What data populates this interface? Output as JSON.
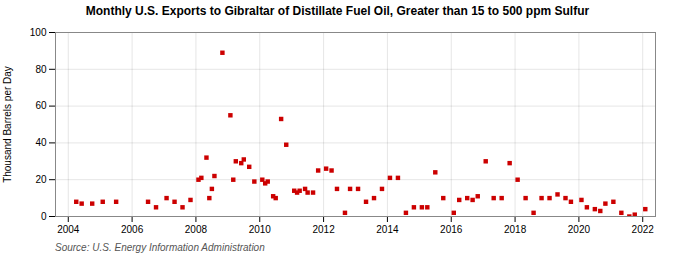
{
  "chart_data": {
    "type": "scatter",
    "title": "Monthly U.S. Exports to Gibraltar of Distillate Fuel Oil, Greater than 15 to 500 ppm Sulfur",
    "ylabel": "Thousand Barrels per Day",
    "source": "Source: U.S. Energy Information Administration",
    "color": "#cc0000",
    "marker": "square",
    "grid": true,
    "xlim": [
      2003.6,
      2022.4
    ],
    "ylim": [
      0,
      100
    ],
    "xticks": [
      2004,
      2006,
      2008,
      2010,
      2012,
      2014,
      2016,
      2018,
      2020,
      2022
    ],
    "yticks": [
      0,
      20,
      40,
      60,
      80,
      100
    ],
    "x": [
      2004.25,
      2004.42,
      2004.75,
      2005.08,
      2005.5,
      2006.5,
      2006.75,
      2007.08,
      2007.33,
      2007.58,
      2007.83,
      2008.08,
      2008.17,
      2008.33,
      2008.42,
      2008.5,
      2008.58,
      2008.83,
      2009.08,
      2009.17,
      2009.25,
      2009.42,
      2009.5,
      2009.67,
      2009.83,
      2010.08,
      2010.17,
      2010.25,
      2010.42,
      2010.5,
      2010.67,
      2010.83,
      2011.08,
      2011.17,
      2011.25,
      2011.42,
      2011.5,
      2011.67,
      2011.83,
      2012.08,
      2012.25,
      2012.42,
      2012.67,
      2012.83,
      2013.08,
      2013.33,
      2013.58,
      2013.83,
      2014.08,
      2014.33,
      2014.58,
      2014.83,
      2015.08,
      2015.25,
      2015.5,
      2015.75,
      2016.08,
      2016.25,
      2016.5,
      2016.67,
      2016.83,
      2017.08,
      2017.33,
      2017.58,
      2017.83,
      2018.08,
      2018.33,
      2018.58,
      2018.83,
      2019.08,
      2019.33,
      2019.58,
      2019.75,
      2020.08,
      2020.25,
      2020.5,
      2020.67,
      2020.83,
      2021.08,
      2021.33,
      2021.58,
      2021.75,
      2022.08
    ],
    "values": [
      8,
      7,
      7,
      8,
      8,
      8,
      5,
      10,
      8,
      5,
      9,
      20,
      21,
      32,
      10,
      15,
      22,
      89,
      55,
      20,
      30,
      29,
      31,
      27,
      19,
      20,
      18,
      19,
      11,
      10,
      53,
      39,
      14,
      13,
      14,
      15,
      13,
      13,
      25,
      26,
      25,
      15,
      2,
      15,
      15,
      8,
      10,
      15,
      21,
      21,
      2,
      5,
      5,
      5,
      24,
      10,
      2,
      9,
      10,
      9,
      11,
      30,
      10,
      10,
      29,
      20,
      10,
      2,
      10,
      10,
      12,
      10,
      8,
      9,
      5,
      4,
      3,
      7,
      8,
      2,
      0,
      1,
      4
    ]
  }
}
